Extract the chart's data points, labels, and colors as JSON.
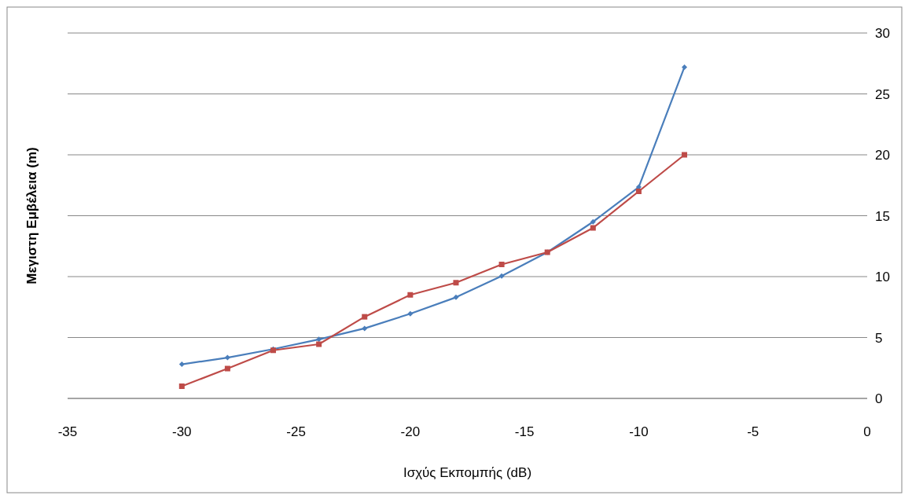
{
  "chart_data": {
    "type": "line",
    "xlabel": "Ισχύς Εκπομπής (dB)",
    "ylabel": "Μεγιστη Εμβέλεια (m)",
    "x": [
      -30,
      -28,
      -26,
      -24,
      -22,
      -20,
      -18,
      -16,
      -14,
      -12,
      -10,
      -8
    ],
    "series": [
      {
        "color": "#4a7ebb",
        "marker": "diamond",
        "values": [
          2.8,
          3.35,
          4.05,
          4.85,
          5.75,
          6.95,
          8.3,
          10.05,
          12.0,
          14.5,
          17.35,
          27.2
        ]
      },
      {
        "color": "#be4b48",
        "marker": "square",
        "values": [
          1.0,
          2.45,
          3.95,
          4.45,
          6.7,
          8.5,
          9.5,
          11.0,
          12.0,
          14.0,
          17.0,
          20.0
        ]
      }
    ],
    "xlim": [
      -35,
      0
    ],
    "xticks": [
      -35,
      -30,
      -25,
      -20,
      -15,
      -10,
      -5,
      0
    ],
    "ylim": [
      0,
      30
    ],
    "yticks": [
      0,
      5,
      10,
      15,
      20,
      25,
      30
    ],
    "grid": "y",
    "line_style": "solid"
  }
}
